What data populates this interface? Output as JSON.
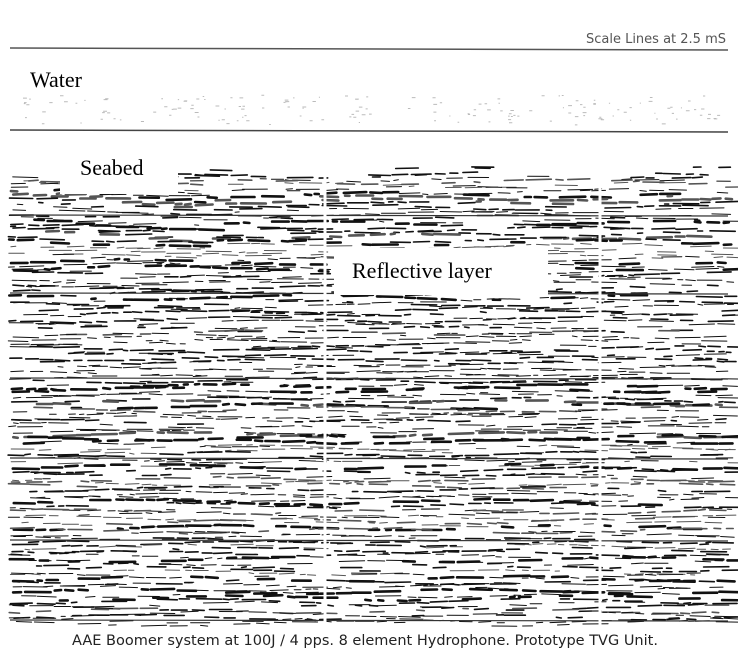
{
  "scale_note": "Scale Lines at 2.5 mS",
  "labels": {
    "water": "Water",
    "seabed": "Seabed",
    "reflective_layer": "Reflective layer"
  },
  "caption": "AAE Boomer system at 100J / 4 pps. 8 element Hydrophone. Prototype TVG Unit."
}
